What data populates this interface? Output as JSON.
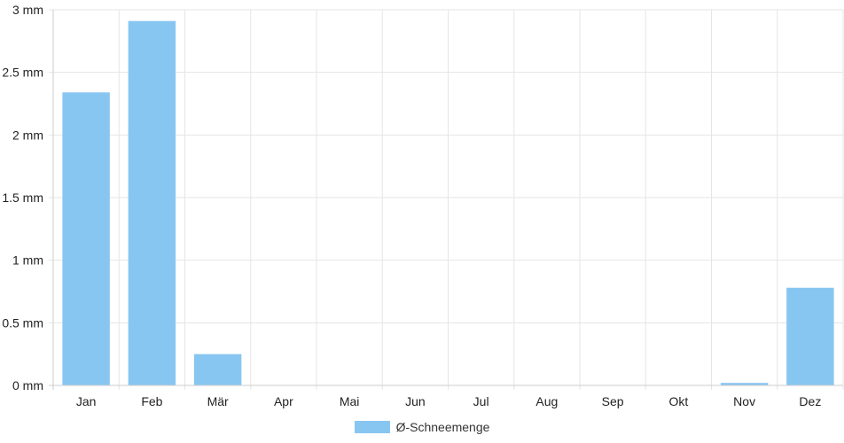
{
  "chart_data": {
    "type": "bar",
    "categories": [
      "Jan",
      "Feb",
      "Mär",
      "Apr",
      "Mai",
      "Jun",
      "Jul",
      "Aug",
      "Sep",
      "Okt",
      "Nov",
      "Dez"
    ],
    "series": [
      {
        "name": "Ø-Schneemenge",
        "values": [
          2.34,
          2.91,
          0.25,
          0,
          0,
          0,
          0,
          0,
          0,
          0,
          0.02,
          0.78
        ],
        "color": "#88c6f2"
      }
    ],
    "y_ticks": [
      "0 mm",
      "0.5 mm",
      "1 mm",
      "1.5 mm",
      "2 mm",
      "2.5 mm",
      "3 mm"
    ],
    "ylim": [
      0,
      3
    ],
    "grid": true,
    "legend_position": "bottom-center"
  }
}
